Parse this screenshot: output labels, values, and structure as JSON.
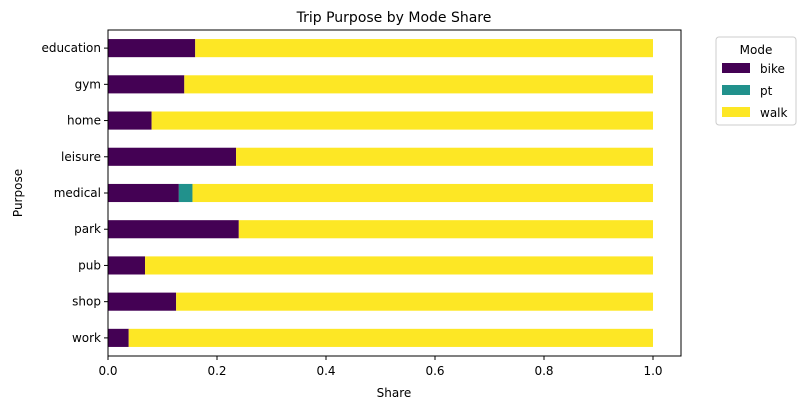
{
  "chart_data": {
    "type": "bar",
    "orientation": "horizontal",
    "stacked": true,
    "title": "Trip Purpose by Mode Share",
    "xlabel": "Share",
    "ylabel": "Purpose",
    "xlim": [
      0,
      1.05
    ],
    "xticks": [
      "0.0",
      "0.2",
      "0.4",
      "0.6",
      "0.8",
      "1.0"
    ],
    "grid": false,
    "legend": {
      "title": "Mode",
      "placement": "outside-right-top"
    },
    "categories": [
      "education",
      "gym",
      "home",
      "leisure",
      "medical",
      "park",
      "pub",
      "shop",
      "work"
    ],
    "series": [
      {
        "name": "bike",
        "color": "#440154",
        "values": [
          0.16,
          0.14,
          0.08,
          0.235,
          0.13,
          0.24,
          0.068,
          0.125,
          0.038
        ]
      },
      {
        "name": "pt",
        "color": "#21918c",
        "values": [
          0,
          0,
          0,
          0,
          0.025,
          0,
          0,
          0,
          0
        ]
      },
      {
        "name": "walk",
        "color": "#fde725",
        "values": [
          0.84,
          0.86,
          0.92,
          0.765,
          0.845,
          0.76,
          0.932,
          0.875,
          0.962
        ]
      }
    ]
  }
}
